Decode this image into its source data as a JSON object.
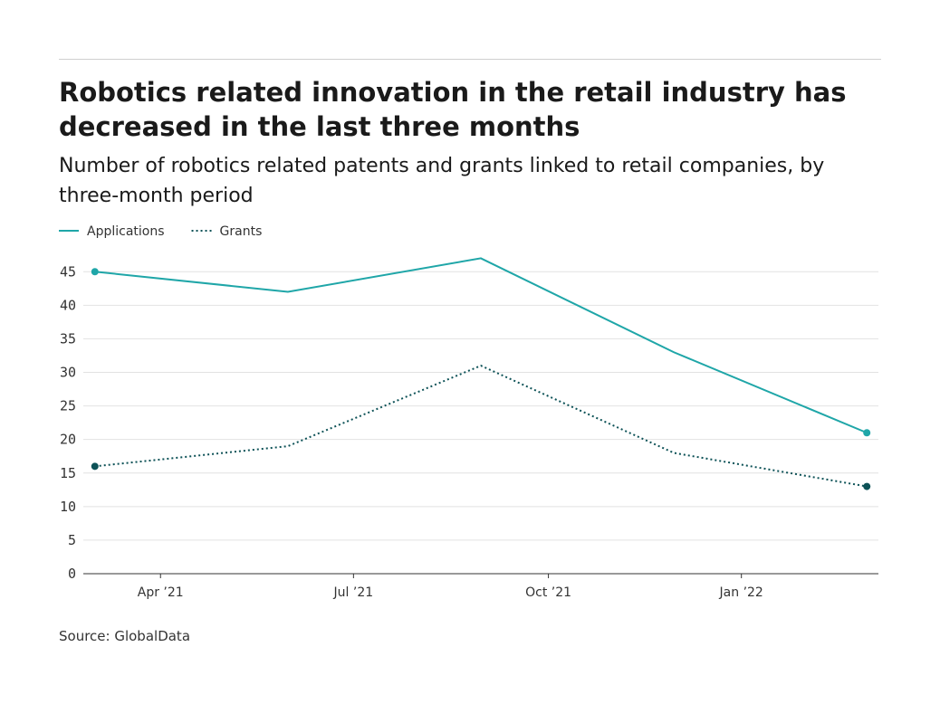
{
  "chart_data": {
    "type": "line",
    "title": "Robotics related innovation in the retail industry has decreased in the last three months",
    "subtitle": "Number of robotics related patents and grants linked to retail companies, by three-month period",
    "source": "Source: GlobalData",
    "x": [
      0,
      1,
      2,
      3,
      4
    ],
    "xlim": [
      -0.06,
      4.06
    ],
    "xticks": [
      {
        "value": 0.34,
        "label": "Apr ’21"
      },
      {
        "value": 1.34,
        "label": "Jul ’21"
      },
      {
        "value": 2.35,
        "label": "Oct ’21"
      },
      {
        "value": 3.35,
        "label": "Jan ’22"
      }
    ],
    "ylim": [
      0,
      48
    ],
    "yticks": [
      0,
      5,
      10,
      15,
      20,
      25,
      30,
      35,
      40,
      45
    ],
    "grid": true,
    "legend": "top-left",
    "series": [
      {
        "name": "Applications",
        "color": "#1fa6a8",
        "line_style": "solid",
        "values": [
          45,
          42,
          47,
          33,
          21
        ]
      },
      {
        "name": "Grants",
        "color": "#0d5257",
        "line_style": "dotted",
        "values": [
          16,
          19,
          31,
          18,
          13
        ]
      }
    ]
  }
}
